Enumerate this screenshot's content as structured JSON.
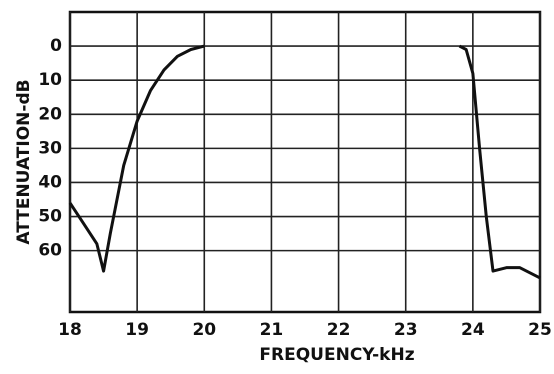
{
  "chart_data": {
    "type": "line",
    "x_label": "FREQUENCY-kHz",
    "y_label": "ATTENUATION-dB",
    "x": [
      18,
      18.2,
      18.4,
      18.5,
      18.6,
      18.8,
      19.0,
      19.2,
      19.4,
      19.6,
      19.8,
      20.0,
      null,
      23.8,
      23.9,
      24.0,
      24.1,
      24.2,
      24.3,
      24.5,
      24.7,
      25.0
    ],
    "series": [
      {
        "color": "#111111",
        "values": [
          46,
          52,
          58,
          66,
          55,
          35,
          22,
          13,
          7,
          3,
          1,
          0,
          null,
          0,
          1,
          8,
          30,
          50,
          66,
          65,
          65,
          68
        ]
      }
    ],
    "xlim": [
      18,
      25
    ],
    "xticks": [
      18,
      19,
      20,
      21,
      22,
      23,
      24,
      25
    ],
    "ylim": [
      -10,
      78
    ],
    "yticks": [
      0,
      10,
      20,
      30,
      40,
      50,
      60
    ],
    "y_inverted": true,
    "grid": true
  }
}
